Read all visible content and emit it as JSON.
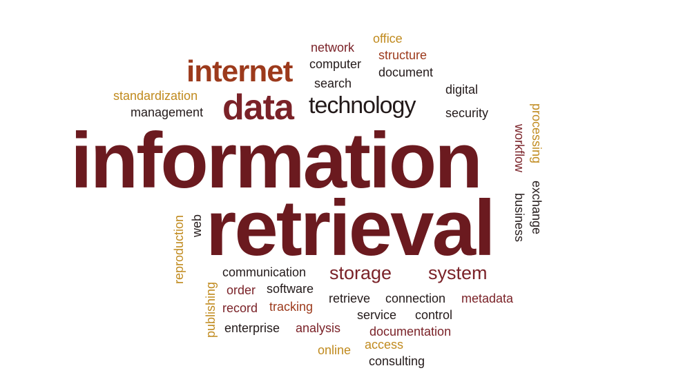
{
  "colors": {
    "dark_red": "#6b1a1f",
    "brick": "#9c3a1c",
    "maroon": "#7a2228",
    "black": "#231a1a",
    "gold": "#c08a1e"
  },
  "words": {
    "information": "information",
    "retrieval": "retrieval",
    "internet": "internet",
    "data": "data",
    "technology": "technology",
    "storage": "storage",
    "system": "system",
    "network": "network",
    "office": "office",
    "computer": "computer",
    "structure": "structure",
    "document": "document",
    "search": "search",
    "digital": "digital",
    "standardization": "standardization",
    "management": "management",
    "security": "security",
    "processing": "processing",
    "workflow": "workflow",
    "exchange": "exchange",
    "business": "business",
    "reproduction": "reproduction",
    "web": "web",
    "publishing": "publishing",
    "communication": "communication",
    "order": "order",
    "software": "software",
    "record": "record",
    "tracking": "tracking",
    "retrieve": "retrieve",
    "connection": "connection",
    "metadata": "metadata",
    "service": "service",
    "control": "control",
    "enterprise": "enterprise",
    "analysis": "analysis",
    "documentation": "documentation",
    "online": "online",
    "access": "access",
    "consulting": "consulting"
  }
}
